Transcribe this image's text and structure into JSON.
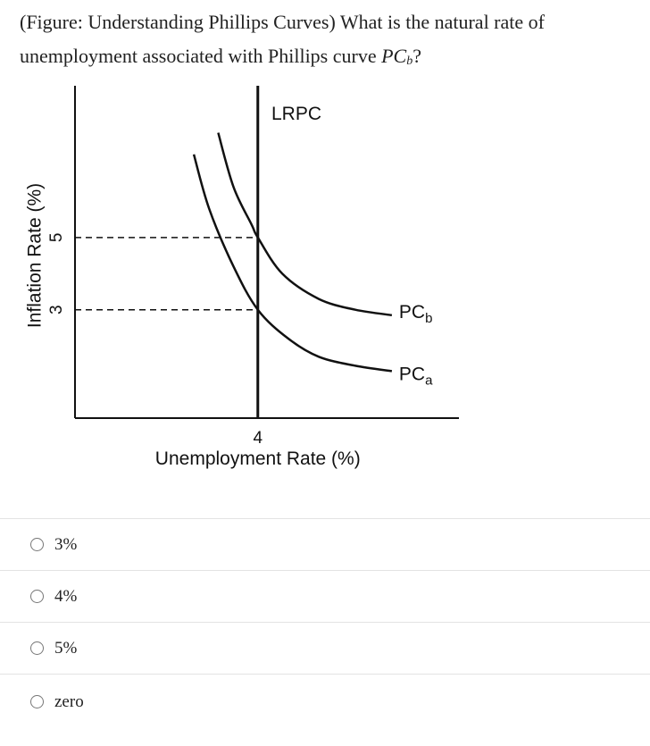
{
  "question": {
    "text_before": "(Figure: Understanding Phillips Curves) What is the natural rate of unemployment associated with Phillips curve ",
    "symbol": "PC",
    "symbol_sub": "b",
    "text_after": "?"
  },
  "chart_data": {
    "type": "line",
    "title": "",
    "xlabel": "Unemployment Rate (%)",
    "ylabel": "Inflation Rate (%)",
    "x_ticks": [
      4
    ],
    "y_ticks": [
      3,
      5
    ],
    "series": [
      {
        "name": "LRPC",
        "kind": "vertical",
        "x": [
          4,
          4
        ],
        "y": [
          0,
          9.2
        ]
      },
      {
        "name": "PCb",
        "name_main": "PC",
        "name_sub": "b",
        "x": [
          3.35,
          3.6,
          3.9,
          4.0,
          4.4,
          5.0,
          5.6,
          6.2
        ],
        "y": [
          7.9,
          6.4,
          5.35,
          5.0,
          4.0,
          3.3,
          3.0,
          2.85
        ]
      },
      {
        "name": "PCa",
        "name_main": "PC",
        "name_sub": "a",
        "x": [
          2.95,
          3.2,
          3.6,
          4.0,
          4.5,
          5.0,
          5.6,
          6.2
        ],
        "y": [
          7.3,
          5.8,
          4.2,
          3.0,
          2.2,
          1.7,
          1.45,
          1.3
        ]
      }
    ],
    "reference_lines": [
      {
        "y": 5,
        "x_end": 4,
        "style": "dashed"
      },
      {
        "y": 3,
        "x_end": 4,
        "style": "dashed"
      }
    ],
    "xlim": [
      1.0,
      7.3
    ],
    "ylim": [
      0,
      9.2
    ],
    "grid": false,
    "legend": "none (curves labelled directly)"
  },
  "options": [
    {
      "label": "3%"
    },
    {
      "label": "4%"
    },
    {
      "label": "5%"
    },
    {
      "label": "zero"
    }
  ]
}
